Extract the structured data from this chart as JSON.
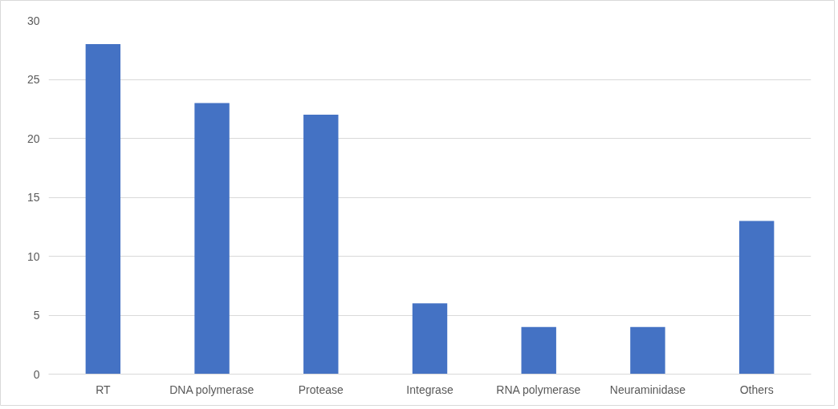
{
  "chart_data": {
    "type": "bar",
    "categories": [
      "RT",
      "DNA polymerase",
      "Protease",
      "Integrase",
      "RNA polymerase",
      "Neuraminidase",
      "Others"
    ],
    "values": [
      28,
      23,
      22,
      6,
      4,
      4,
      13
    ],
    "color": "#4472c4",
    "ylim": [
      0,
      30
    ],
    "yticks": [
      0,
      5,
      10,
      15,
      20,
      25,
      30
    ],
    "grid": "y"
  }
}
